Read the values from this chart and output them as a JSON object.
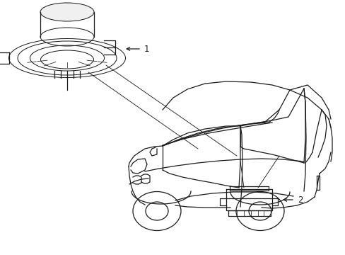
{
  "fig_width": 4.89,
  "fig_height": 3.6,
  "dpi": 100,
  "bg_color": "#ffffff",
  "line_color": "#1a1a1a",
  "line_width": 0.9,
  "label_fontsize": 8.5,
  "label_1": "1",
  "label_2": "2"
}
